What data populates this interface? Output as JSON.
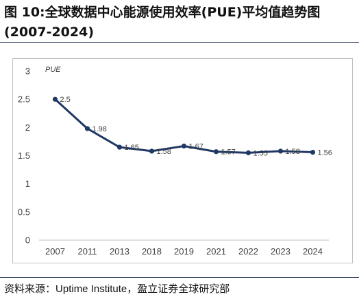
{
  "figure": {
    "title_prefix": "图 10:",
    "title_main": "全球数据中心能源使用效率(PUE)平均值趋势图",
    "title_line2": "(2007-2024)",
    "source_prefix": "资料来源：",
    "source_en": "Uptime Institute",
    "source_suffix": "，盈立证券全球研究部"
  },
  "chart_data": {
    "type": "line",
    "title": "",
    "ylabel": "PUE",
    "xlabel": "",
    "categories": [
      "2007",
      "2011",
      "2013",
      "2018",
      "2019",
      "2021",
      "2022",
      "2023",
      "2024"
    ],
    "series": [
      {
        "values": [
          2.5,
          1.98,
          1.65,
          1.58,
          1.67,
          1.57,
          1.55,
          1.58,
          1.56
        ],
        "labels": [
          "2.5",
          "1.98",
          "1.65",
          "1.58",
          "1.67",
          "1.57",
          "1.55",
          "1.58",
          "1.56"
        ]
      }
    ],
    "ylim": [
      0,
      3
    ],
    "yticks": [
      "0",
      "0.5",
      "1",
      "1.5",
      "2",
      "2.5",
      "3"
    ],
    "grid": false,
    "legend": "none",
    "line_color": "#1f3864",
    "axis_color": "#bfbfbf"
  }
}
